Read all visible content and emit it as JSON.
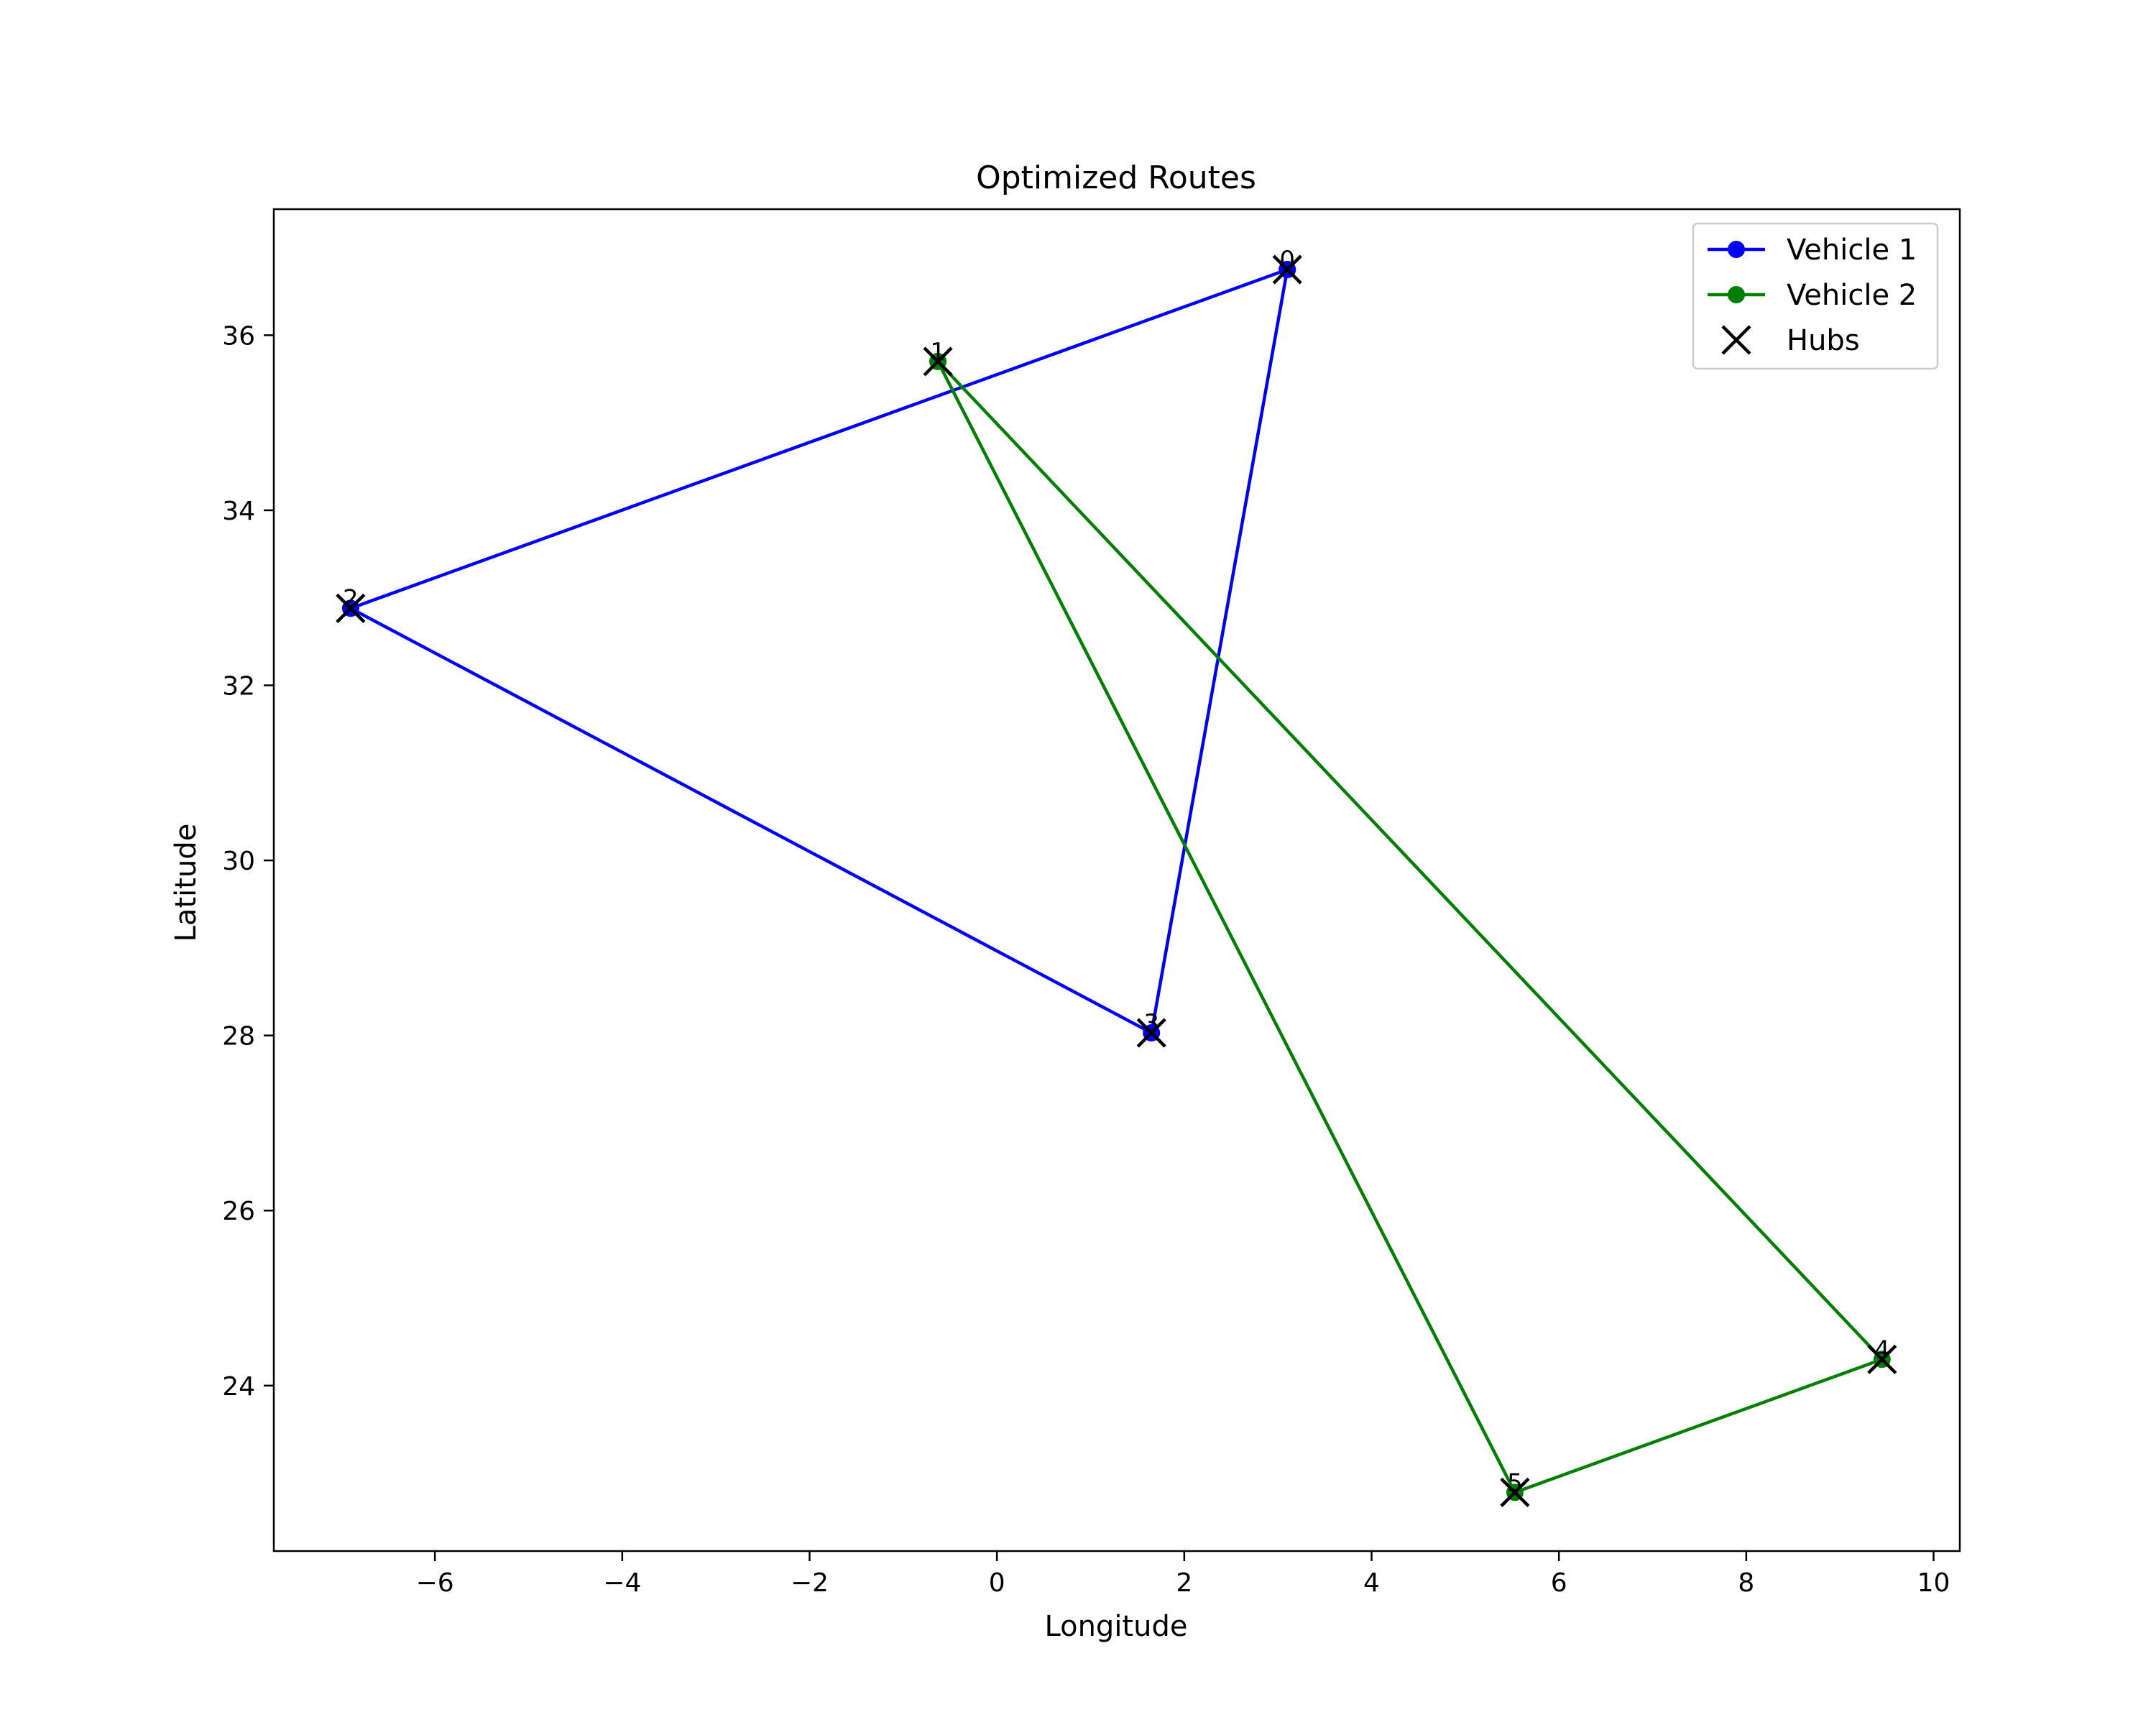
{
  "chart_data": {
    "type": "line",
    "title": "Optimized Routes",
    "xlabel": "Longitude",
    "ylabel": "Latitude",
    "xlim": [
      -7.72,
      10.28
    ],
    "ylim": [
      22.11,
      37.44
    ],
    "xticks": [
      -6,
      -4,
      -2,
      0,
      2,
      4,
      6,
      8,
      10
    ],
    "yticks": [
      24,
      26,
      28,
      30,
      32,
      34,
      36
    ],
    "xtick_labels": [
      "−6",
      "−4",
      "−2",
      "0",
      "2",
      "4",
      "6",
      "8",
      "10"
    ],
    "ytick_labels": [
      "24",
      "26",
      "28",
      "30",
      "32",
      "34",
      "36"
    ],
    "grid": false,
    "legend_position": "top-right",
    "hubs_label": "Hubs",
    "hubs": [
      {
        "label": "0",
        "x": 3.1,
        "y": 36.75
      },
      {
        "label": "1",
        "x": -0.63,
        "y": 35.7
      },
      {
        "label": "2",
        "x": -6.9,
        "y": 32.88
      },
      {
        "label": "3",
        "x": 1.65,
        "y": 28.03
      },
      {
        "label": "4",
        "x": 9.45,
        "y": 24.3
      },
      {
        "label": "5",
        "x": 5.53,
        "y": 22.78
      }
    ],
    "series": [
      {
        "name": "Vehicle 1",
        "color": "#0000ff",
        "route": [
          0,
          2,
          3,
          0
        ],
        "x": [
          3.1,
          -6.9,
          1.65,
          3.1
        ],
        "y": [
          36.75,
          32.88,
          28.03,
          36.75
        ]
      },
      {
        "name": "Vehicle 2",
        "color": "#008000",
        "route": [
          1,
          5,
          4,
          1
        ],
        "x": [
          -0.63,
          5.53,
          9.45,
          -0.63
        ],
        "y": [
          35.7,
          22.78,
          24.3,
          35.7
        ]
      }
    ]
  }
}
